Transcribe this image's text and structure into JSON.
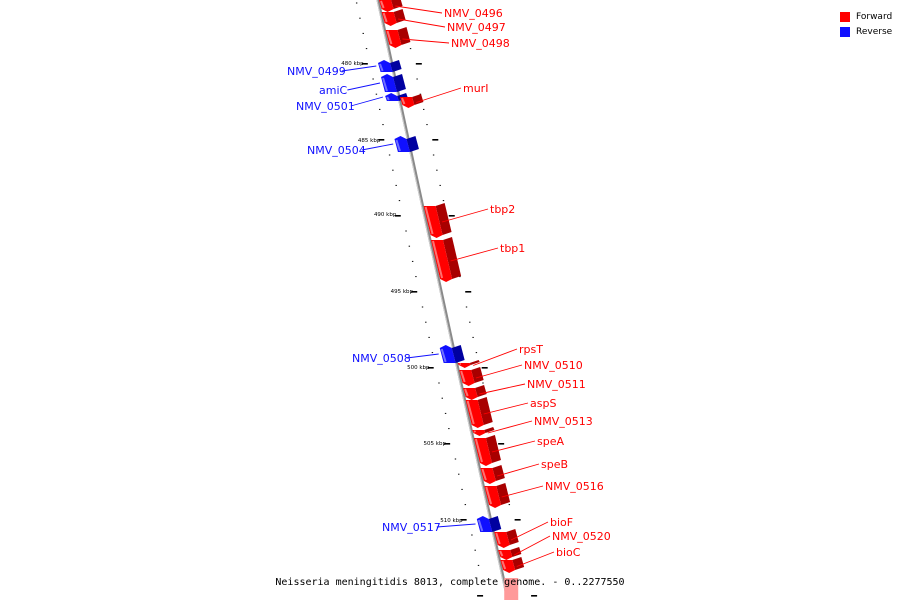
{
  "legend": {
    "items": [
      {
        "label": "Forward",
        "color": "#ff0000"
      },
      {
        "label": "Reverse",
        "color": "#1010ff"
      }
    ]
  },
  "caption": "Neisseria meningitidis 8013, complete genome. - 0..2277550",
  "map": {
    "forward_color": "#ff0000",
    "reverse_color": "#1010ff",
    "kbp_labels": [
      "480 kbp",
      "485 kbp",
      "490 kbp",
      "495 kbp",
      "500 kbp",
      "505 kbp",
      "510 kbp"
    ],
    "genes": [
      {
        "name": "NMV_0496",
        "strand": "forward"
      },
      {
        "name": "NMV_0497",
        "strand": "forward"
      },
      {
        "name": "NMV_0498",
        "strand": "forward"
      },
      {
        "name": "NMV_0499",
        "strand": "reverse"
      },
      {
        "name": "amiC",
        "strand": "reverse"
      },
      {
        "name": "NMV_0501",
        "strand": "reverse"
      },
      {
        "name": "murI",
        "strand": "forward"
      },
      {
        "name": "NMV_0504",
        "strand": "reverse"
      },
      {
        "name": "tbp2",
        "strand": "forward"
      },
      {
        "name": "tbp1",
        "strand": "forward"
      },
      {
        "name": "NMV_0508",
        "strand": "reverse"
      },
      {
        "name": "rpsT",
        "strand": "forward"
      },
      {
        "name": "NMV_0510",
        "strand": "forward"
      },
      {
        "name": "NMV_0511",
        "strand": "forward"
      },
      {
        "name": "aspS",
        "strand": "forward"
      },
      {
        "name": "NMV_0513",
        "strand": "forward"
      },
      {
        "name": "speA",
        "strand": "forward"
      },
      {
        "name": "speB",
        "strand": "forward"
      },
      {
        "name": "NMV_0516",
        "strand": "forward"
      },
      {
        "name": "NMV_0517",
        "strand": "reverse"
      },
      {
        "name": "bioF",
        "strand": "forward"
      },
      {
        "name": "NMV_0520",
        "strand": "forward"
      },
      {
        "name": "bioC",
        "strand": "forward"
      }
    ]
  }
}
